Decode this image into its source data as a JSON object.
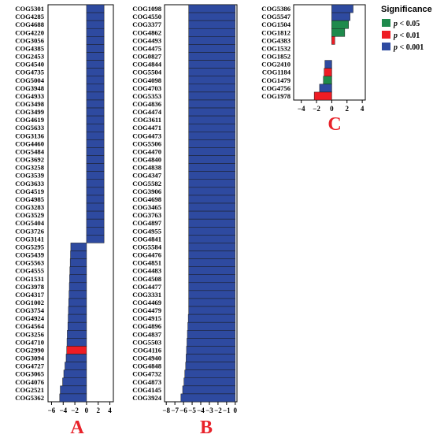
{
  "colors": {
    "p005": "#1e8a4c",
    "p001": "#ee1c24",
    "p0001": "#2e4aa0",
    "letter": "#e8222a"
  },
  "legend": {
    "title": "Significance",
    "items": [
      {
        "key": "p005",
        "p": "p",
        "rest": " < 0.05"
      },
      {
        "key": "p001",
        "p": "p",
        "rest": " < 0.01"
      },
      {
        "key": "p0001",
        "p": "p",
        "rest": " < 0.001"
      }
    ]
  },
  "chart_data": [
    {
      "panel": "A",
      "type": "bar",
      "orientation": "horizontal",
      "xlim": [
        -6.6,
        4.6
      ],
      "xticks": [
        -6,
        -4,
        -2,
        0,
        2,
        4
      ],
      "categories": [
        "COG5301",
        "COG4285",
        "COG4688",
        "COG4220",
        "COG3056",
        "COG4385",
        "COG2453",
        "COG4540",
        "COG4735",
        "COG5004",
        "COG3948",
        "COG4933",
        "COG3498",
        "COG3499",
        "COG4619",
        "COG5633",
        "COG3136",
        "COG4460",
        "COG5484",
        "COG3692",
        "COG3258",
        "COG3539",
        "COG3633",
        "COG4519",
        "COG4985",
        "COG3283",
        "COG3529",
        "COG5404",
        "COG3726",
        "COG3141",
        "COG5295",
        "COG5439",
        "COG5563",
        "COG4555",
        "COG1531",
        "COG3978",
        "COG4317",
        "COG1002",
        "COG3754",
        "COG4924",
        "COG4564",
        "COG3256",
        "COG4710",
        "COG2990",
        "COG3094",
        "COG4727",
        "COG3065",
        "COG4076",
        "COG2521",
        "COG5362"
      ],
      "values": [
        3.0,
        3.0,
        3.0,
        3.0,
        3.0,
        3.0,
        3.0,
        3.0,
        3.0,
        3.0,
        3.0,
        3.0,
        3.0,
        3.0,
        3.0,
        3.0,
        3.0,
        3.0,
        3.0,
        3.0,
        3.0,
        3.0,
        3.0,
        3.0,
        3.0,
        3.0,
        3.0,
        3.0,
        3.0,
        3.0,
        -2.7,
        -2.75,
        -2.8,
        -2.85,
        -2.9,
        -2.95,
        -3.0,
        -3.05,
        -3.1,
        -3.15,
        -3.2,
        -3.3,
        -3.35,
        -3.4,
        -3.5,
        -3.7,
        -3.9,
        -4.1,
        -4.5,
        -4.6
      ],
      "significance": [
        "p0001",
        "p0001",
        "p0001",
        "p0001",
        "p0001",
        "p0001",
        "p0001",
        "p0001",
        "p0001",
        "p0001",
        "p0001",
        "p0001",
        "p0001",
        "p0001",
        "p0001",
        "p0001",
        "p0001",
        "p0001",
        "p0001",
        "p0001",
        "p0001",
        "p0001",
        "p0001",
        "p0001",
        "p0001",
        "p0001",
        "p0001",
        "p0001",
        "p0001",
        "p0001",
        "p0001",
        "p0001",
        "p0001",
        "p0001",
        "p0001",
        "p0001",
        "p0001",
        "p0001",
        "p0001",
        "p0001",
        "p0001",
        "p0001",
        "p0001",
        "p001",
        "p0001",
        "p0001",
        "p0001",
        "p0001",
        "p0001",
        "p0001"
      ]
    },
    {
      "panel": "B",
      "type": "bar",
      "orientation": "horizontal",
      "xlim": [
        -8.2,
        0.2
      ],
      "xticks": [
        -8,
        -7,
        -6,
        -5,
        -4,
        -3,
        -2,
        -1,
        0
      ],
      "categories": [
        "COG1098",
        "COG4550",
        "COG3377",
        "COG4862",
        "COG4493",
        "COG4475",
        "COG0827",
        "COG4844",
        "COG5504",
        "COG4098",
        "COG4703",
        "COG5353",
        "COG4836",
        "COG4474",
        "COG3611",
        "COG4471",
        "COG4473",
        "COG5506",
        "COG4470",
        "COG4840",
        "COG4838",
        "COG4347",
        "COG5582",
        "COG3906",
        "COG4698",
        "COG3465",
        "COG3763",
        "COG4897",
        "COG4955",
        "COG4841",
        "COG5584",
        "COG4476",
        "COG4851",
        "COG4483",
        "COG4508",
        "COG4477",
        "COG3331",
        "COG4469",
        "COG4479",
        "COG4915",
        "COG4896",
        "COG4837",
        "COG5503",
        "COG4116",
        "COG4940",
        "COG4848",
        "COG4732",
        "COG4873",
        "COG4145",
        "COG3924"
      ],
      "values": [
        -5.4,
        -5.4,
        -5.4,
        -5.4,
        -5.4,
        -5.4,
        -5.4,
        -5.4,
        -5.4,
        -5.4,
        -5.4,
        -5.4,
        -5.4,
        -5.4,
        -5.4,
        -5.4,
        -5.4,
        -5.4,
        -5.4,
        -5.4,
        -5.4,
        -5.4,
        -5.4,
        -5.4,
        -5.4,
        -5.4,
        -5.4,
        -5.4,
        -5.4,
        -5.4,
        -5.4,
        -5.4,
        -5.4,
        -5.4,
        -5.4,
        -5.4,
        -5.4,
        -5.4,
        -5.4,
        -5.45,
        -5.5,
        -5.55,
        -5.6,
        -5.65,
        -5.7,
        -5.75,
        -5.85,
        -5.95,
        -6.1,
        -6.3
      ],
      "significance": [
        "p0001",
        "p0001",
        "p0001",
        "p0001",
        "p0001",
        "p0001",
        "p0001",
        "p0001",
        "p0001",
        "p0001",
        "p0001",
        "p0001",
        "p0001",
        "p0001",
        "p0001",
        "p0001",
        "p0001",
        "p0001",
        "p0001",
        "p0001",
        "p0001",
        "p0001",
        "p0001",
        "p0001",
        "p0001",
        "p0001",
        "p0001",
        "p0001",
        "p0001",
        "p0001",
        "p0001",
        "p0001",
        "p0001",
        "p0001",
        "p0001",
        "p0001",
        "p0001",
        "p0001",
        "p0001",
        "p0001",
        "p0001",
        "p0001",
        "p0001",
        "p0001",
        "p0001",
        "p0001",
        "p0001",
        "p0001",
        "p0001",
        "p0001"
      ]
    },
    {
      "panel": "C",
      "type": "bar",
      "orientation": "horizontal",
      "xlim": [
        -5.0,
        4.4
      ],
      "xticks": [
        -4,
        -2,
        0,
        2,
        4
      ],
      "categories": [
        "COG5386",
        "COG5547",
        "COG1504",
        "COG1812",
        "COG4383",
        "COG1532",
        "COG1852",
        "COG2410",
        "COG1184",
        "COG1479",
        "COG4756",
        "COG1978"
      ],
      "values": [
        2.8,
        2.4,
        2.2,
        1.7,
        0.4,
        0,
        0,
        -0.9,
        -1.0,
        -1.1,
        -1.6,
        -2.3
      ],
      "significance": [
        "p0001",
        "p0001",
        "p005",
        "p005",
        "p001",
        "p0001",
        "p0001",
        "p0001",
        "p001",
        "p005",
        "p0001",
        "p001"
      ]
    }
  ],
  "panel_letters": [
    "A",
    "B",
    "C"
  ]
}
